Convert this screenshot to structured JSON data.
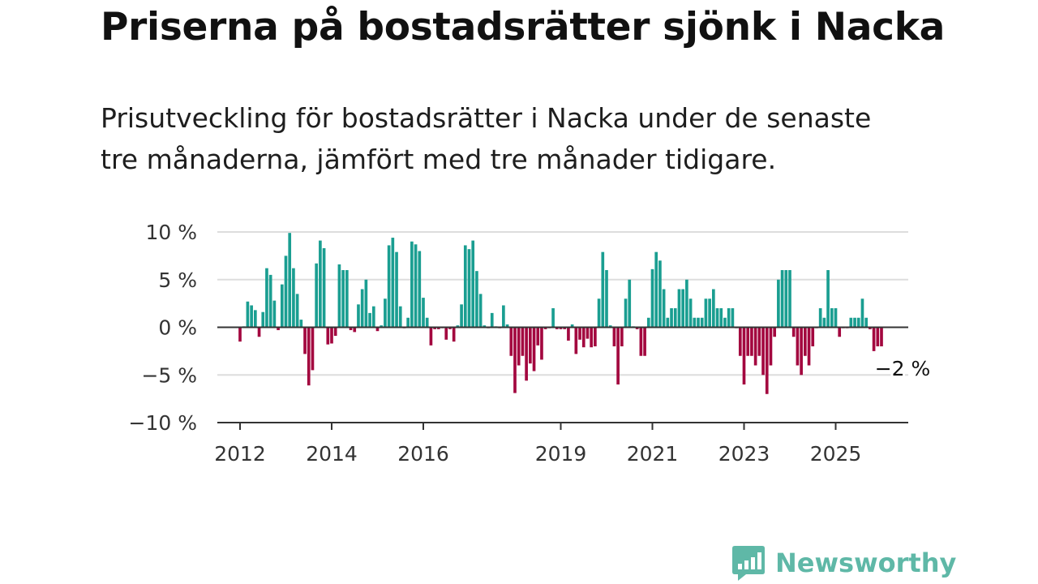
{
  "title": "Priserna på bostadsrätter sjönk i Nacka",
  "subtitle_line1": "Prisutveckling för bostadsrätter i Nacka under de senaste",
  "subtitle_line2": "tre månaderna, jämfört med tre månader tidigare.",
  "colors": {
    "positive": "#1a9e91",
    "negative": "#a3073f",
    "grid": "#dddddd",
    "axis": "#333333",
    "logo": "#5fb8a7"
  },
  "chart_data": {
    "type": "bar",
    "y_unit": "%",
    "ylim": [
      -10,
      10
    ],
    "y_ticks": [
      10,
      5,
      0,
      -5,
      -10
    ],
    "y_tick_labels": [
      "10 %",
      "5 %",
      "0 %",
      "−5 %",
      "−10 %"
    ],
    "x_ticks": [
      2012,
      2014,
      2016,
      2019,
      2021,
      2023,
      2025
    ],
    "x_tick_labels": [
      "2012",
      "2014",
      "2016",
      "2019",
      "2021",
      "2023",
      "2025"
    ],
    "last_label": "−2 %",
    "grid": true,
    "series_start": "2012-01",
    "frequency": "monthly",
    "values": [
      -1.5,
      0.1,
      2.7,
      2.3,
      1.8,
      -1.0,
      1.6,
      6.2,
      5.5,
      2.8,
      -0.3,
      4.5,
      7.5,
      9.9,
      6.2,
      3.5,
      0.8,
      -2.8,
      -6.1,
      -4.5,
      6.7,
      9.1,
      8.3,
      -1.8,
      -1.7,
      -0.9,
      6.6,
      6.0,
      6.0,
      -0.3,
      -0.5,
      2.4,
      4.0,
      5.0,
      1.5,
      2.2,
      -0.4,
      0.2,
      3.0,
      8.6,
      9.4,
      7.9,
      2.2,
      -0.1,
      1.0,
      9.0,
      8.7,
      8.0,
      3.1,
      1.0,
      -1.9,
      -0.2,
      -0.2,
      -0.1,
      -1.3,
      -0.2,
      -1.5,
      0.2,
      2.4,
      8.6,
      8.2,
      9.1,
      5.9,
      3.5,
      0.2,
      -0.1,
      1.5,
      0.1,
      -0.1,
      2.3,
      0.3,
      -3.0,
      -6.9,
      -4.0,
      -3.0,
      -5.6,
      -3.8,
      -4.6,
      -1.9,
      -3.4,
      -0.2,
      -0.1,
      2.0,
      -0.2,
      -0.2,
      -0.2,
      -1.4,
      0.3,
      -2.8,
      -1.3,
      -2.1,
      -1.2,
      -2.1,
      -2.0,
      3.0,
      7.9,
      6.0,
      0.2,
      -2.0,
      -6.0,
      -2.0,
      3.0,
      5.0,
      0.1,
      -0.2,
      -3.0,
      -3.0,
      1.0,
      6.1,
      7.9,
      7.0,
      4.0,
      1.0,
      2.0,
      2.0,
      4.0,
      4.0,
      5.0,
      3.0,
      1.0,
      1.0,
      1.0,
      3.0,
      3.0,
      4.0,
      2.0,
      2.0,
      1.0,
      2.0,
      2.0,
      -0.1,
      -3.0,
      -6.0,
      -3.0,
      -3.0,
      -4.0,
      -3.0,
      -5.0,
      -7.0,
      -4.0,
      -1.0,
      5.0,
      6.0,
      6.0,
      6.0,
      -1.0,
      -4.0,
      -5.0,
      -3.0,
      -4.0,
      -2.0,
      -0.1,
      2.0,
      1.0,
      6.0,
      2.0,
      2.0,
      -1.0,
      -0.1,
      -0.1,
      1.0,
      1.0,
      1.0,
      3.0,
      1.0,
      -0.2,
      -2.5,
      -2.0,
      -2.0
    ]
  },
  "logo": {
    "text": "Newsworthy"
  }
}
